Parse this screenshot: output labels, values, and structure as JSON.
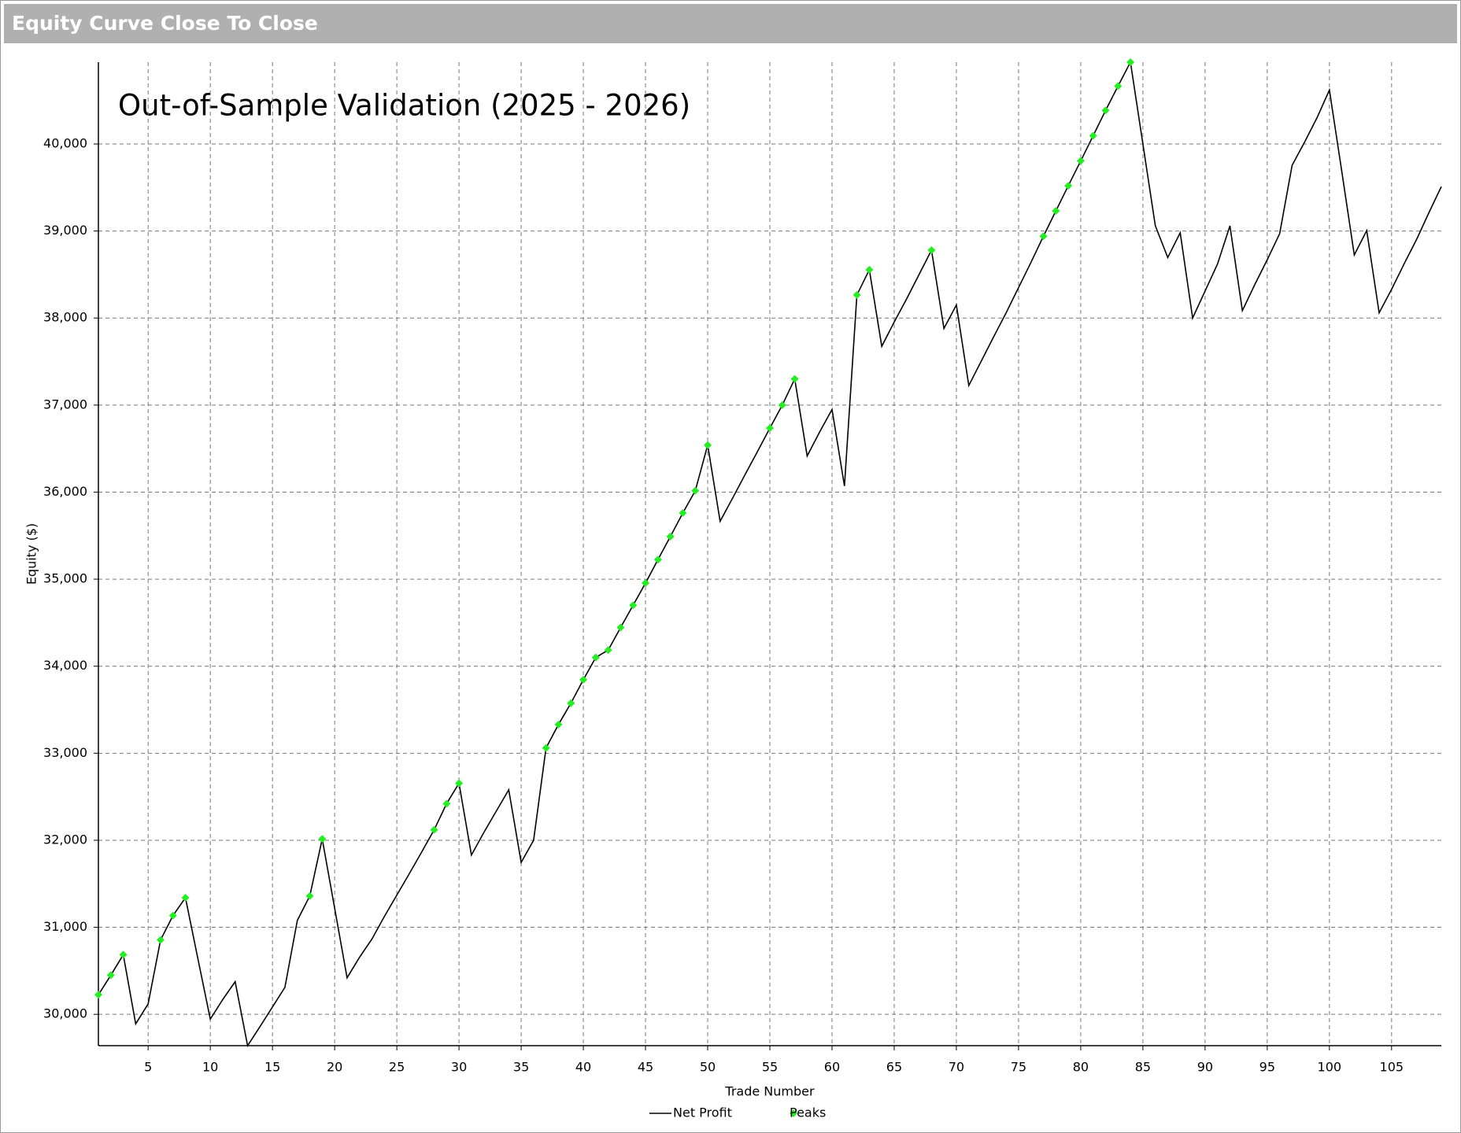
{
  "header": {
    "title": "Equity Curve Close To Close"
  },
  "chart_data": {
    "type": "line",
    "title": "Out-of-Sample Validation (2025 - 2026)",
    "x_label": "Trade Number",
    "y_label": "Equity ($)",
    "x": [
      1,
      2,
      3,
      4,
      5,
      6,
      7,
      8,
      9,
      10,
      11,
      12,
      13,
      14,
      15,
      16,
      17,
      18,
      19,
      20,
      21,
      22,
      23,
      24,
      25,
      26,
      27,
      28,
      29,
      30,
      31,
      32,
      33,
      34,
      35,
      36,
      37,
      38,
      39,
      40,
      41,
      42,
      43,
      44,
      45,
      46,
      47,
      48,
      49,
      50,
      51,
      52,
      53,
      54,
      55,
      56,
      57,
      58,
      59,
      60,
      61,
      62,
      63,
      64,
      65,
      66,
      67,
      68,
      69,
      70,
      71,
      72,
      73,
      74,
      75,
      76,
      77,
      78,
      79,
      80,
      81,
      82,
      83,
      84,
      85,
      86,
      87,
      88,
      89,
      90,
      91,
      92,
      93,
      94,
      95,
      96,
      97,
      98,
      99,
      100,
      101,
      102,
      103,
      104,
      105,
      106,
      107,
      108,
      109
    ],
    "series": [
      {
        "name": "Net Profit",
        "color": "#000000",
        "marker": "line",
        "values": [
          30225,
          30450,
          30685,
          29890,
          30120,
          30855,
          31135,
          31340,
          30640,
          29945,
          30170,
          30375,
          29640,
          29860,
          30085,
          30310,
          31080,
          31360,
          32015,
          31220,
          30420,
          30655,
          30865,
          31125,
          31370,
          31615,
          31865,
          32120,
          32420,
          32655,
          31830,
          32090,
          32335,
          32580,
          31745,
          32000,
          33060,
          33330,
          33575,
          33845,
          34100,
          34185,
          34445,
          34700,
          34955,
          35225,
          35490,
          35760,
          36015,
          36540,
          35665,
          35930,
          36200,
          36465,
          36735,
          37000,
          37300,
          36415,
          36690,
          36950,
          36070,
          38265,
          38555,
          37675,
          37955,
          38220,
          38500,
          38780,
          37880,
          38150,
          37225,
          37505,
          37785,
          38060,
          38350,
          38640,
          38940,
          39230,
          39520,
          39805,
          40095,
          40385,
          40665,
          40940,
          40000,
          39060,
          38695,
          38980,
          38000,
          38310,
          38620,
          39060,
          38085,
          38385,
          38670,
          38970,
          39755,
          40020,
          40300,
          40620,
          39680,
          38725,
          39005,
          38060,
          38330,
          38620,
          38900,
          39210,
          39510
        ]
      },
      {
        "name": "Peaks",
        "color": "#22ee22",
        "marker": "diamond",
        "values": [
          30225,
          30450,
          30685,
          null,
          null,
          30855,
          31135,
          31340,
          null,
          null,
          null,
          null,
          null,
          null,
          null,
          null,
          null,
          31360,
          32015,
          null,
          null,
          null,
          null,
          null,
          null,
          null,
          null,
          32120,
          32420,
          32655,
          null,
          null,
          null,
          null,
          null,
          null,
          33060,
          33330,
          33575,
          33845,
          34100,
          34185,
          34445,
          34700,
          34955,
          35225,
          35490,
          35760,
          36015,
          36540,
          null,
          null,
          null,
          null,
          36735,
          37000,
          37300,
          null,
          null,
          null,
          null,
          38265,
          38555,
          null,
          null,
          null,
          null,
          38780,
          null,
          null,
          null,
          null,
          null,
          null,
          null,
          null,
          38940,
          39230,
          39520,
          39805,
          40095,
          40385,
          40665,
          40940,
          null,
          null,
          null,
          null,
          null,
          null,
          null,
          null,
          null,
          null,
          null,
          null,
          null,
          null,
          null,
          null,
          null,
          null,
          null,
          null,
          null,
          null,
          null,
          null,
          null
        ]
      }
    ],
    "xlim": [
      1,
      109
    ],
    "ylim": [
      29640,
      40940
    ],
    "xticks": [
      5,
      10,
      15,
      20,
      25,
      30,
      35,
      40,
      45,
      50,
      55,
      60,
      65,
      70,
      75,
      80,
      85,
      90,
      95,
      100,
      105
    ],
    "yticks": [
      {
        "value": 30000,
        "label": "30,000"
      },
      {
        "value": 31000,
        "label": "31,000"
      },
      {
        "value": 32000,
        "label": "32,000"
      },
      {
        "value": 33000,
        "label": "33,000"
      },
      {
        "value": 34000,
        "label": "34,000"
      },
      {
        "value": 35000,
        "label": "35,000"
      },
      {
        "value": 36000,
        "label": "36,000"
      },
      {
        "value": 37000,
        "label": "37,000"
      },
      {
        "value": 38000,
        "label": "38,000"
      },
      {
        "value": 39000,
        "label": "39,000"
      },
      {
        "value": 40000,
        "label": "40,000"
      }
    ],
    "grid": true,
    "legend": "bottom"
  }
}
